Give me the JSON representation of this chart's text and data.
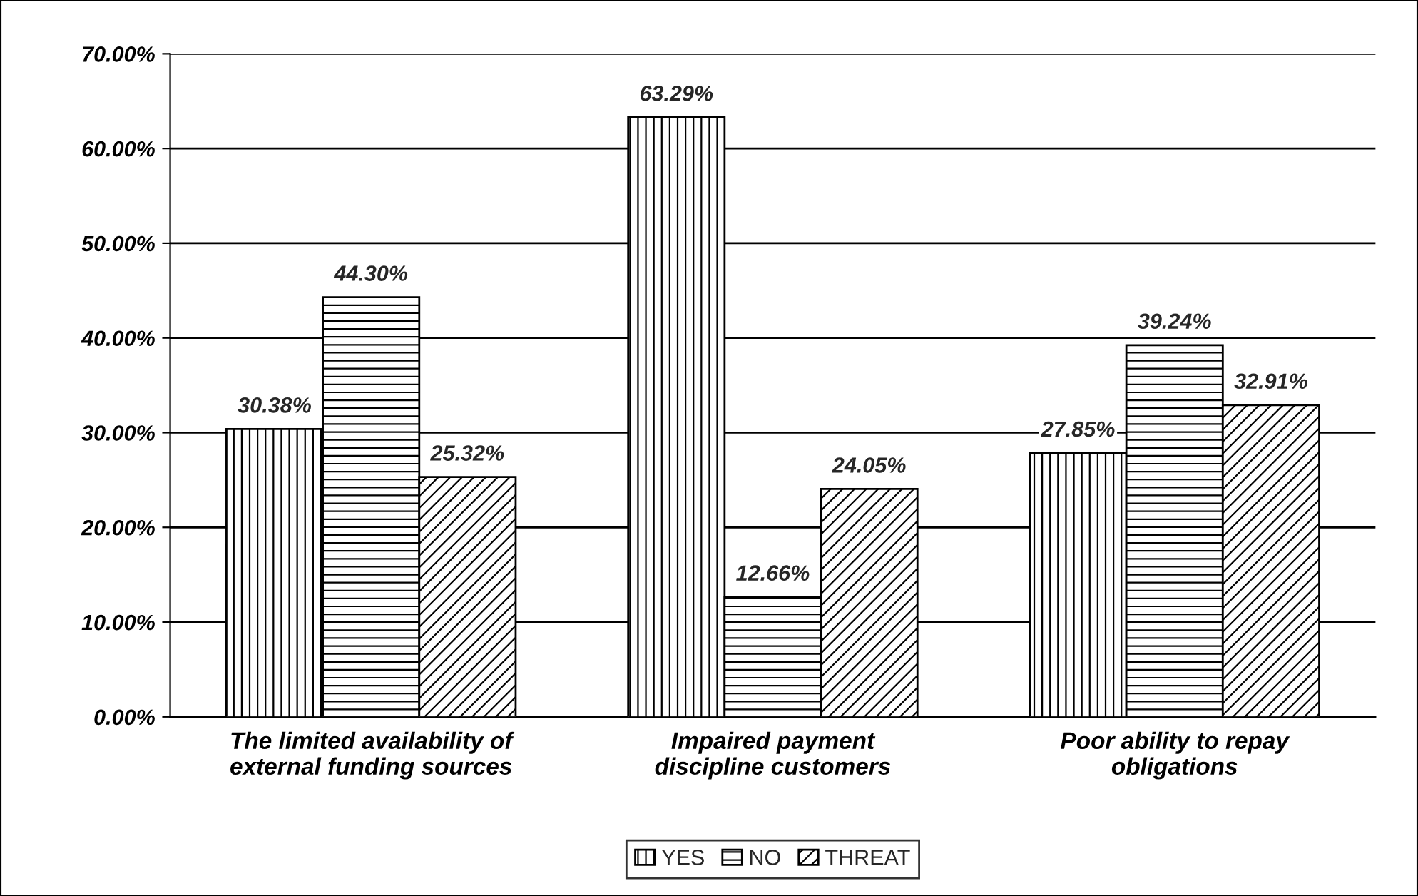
{
  "chart_data": {
    "type": "bar",
    "categories": [
      "The limited availability of\nexternal funding sources",
      "Impaired payment\ndiscipline customers",
      "Poor ability to repay\nobligations"
    ],
    "series": [
      {
        "name": "YES",
        "color": "#000000",
        "values": [
          30.38,
          63.29,
          27.85
        ],
        "value_labels": [
          "30.38%",
          "63.29%",
          "27.85%"
        ]
      },
      {
        "name": "NO",
        "color": "#000000",
        "values": [
          44.3,
          12.66,
          39.24
        ],
        "value_labels": [
          "44.30%",
          "12.66%",
          "39.24%"
        ]
      },
      {
        "name": "THREAT",
        "color": "#000000",
        "values": [
          25.32,
          24.05,
          32.91
        ],
        "value_labels": [
          "25.32%",
          "24.05%",
          "32.91%"
        ]
      }
    ],
    "ylim": [
      0,
      70
    ],
    "yticks": [
      {
        "value": 0,
        "label": "0.00%"
      },
      {
        "value": 10,
        "label": "10.00%"
      },
      {
        "value": 20,
        "label": "20.00%"
      },
      {
        "value": 30,
        "label": "30.00%"
      },
      {
        "value": 40,
        "label": "40.00%"
      },
      {
        "value": 50,
        "label": "50.00%"
      },
      {
        "value": 60,
        "label": "60.00%"
      },
      {
        "value": 70,
        "label": "70.00%"
      }
    ],
    "grid": "y",
    "legend": "bottom"
  }
}
